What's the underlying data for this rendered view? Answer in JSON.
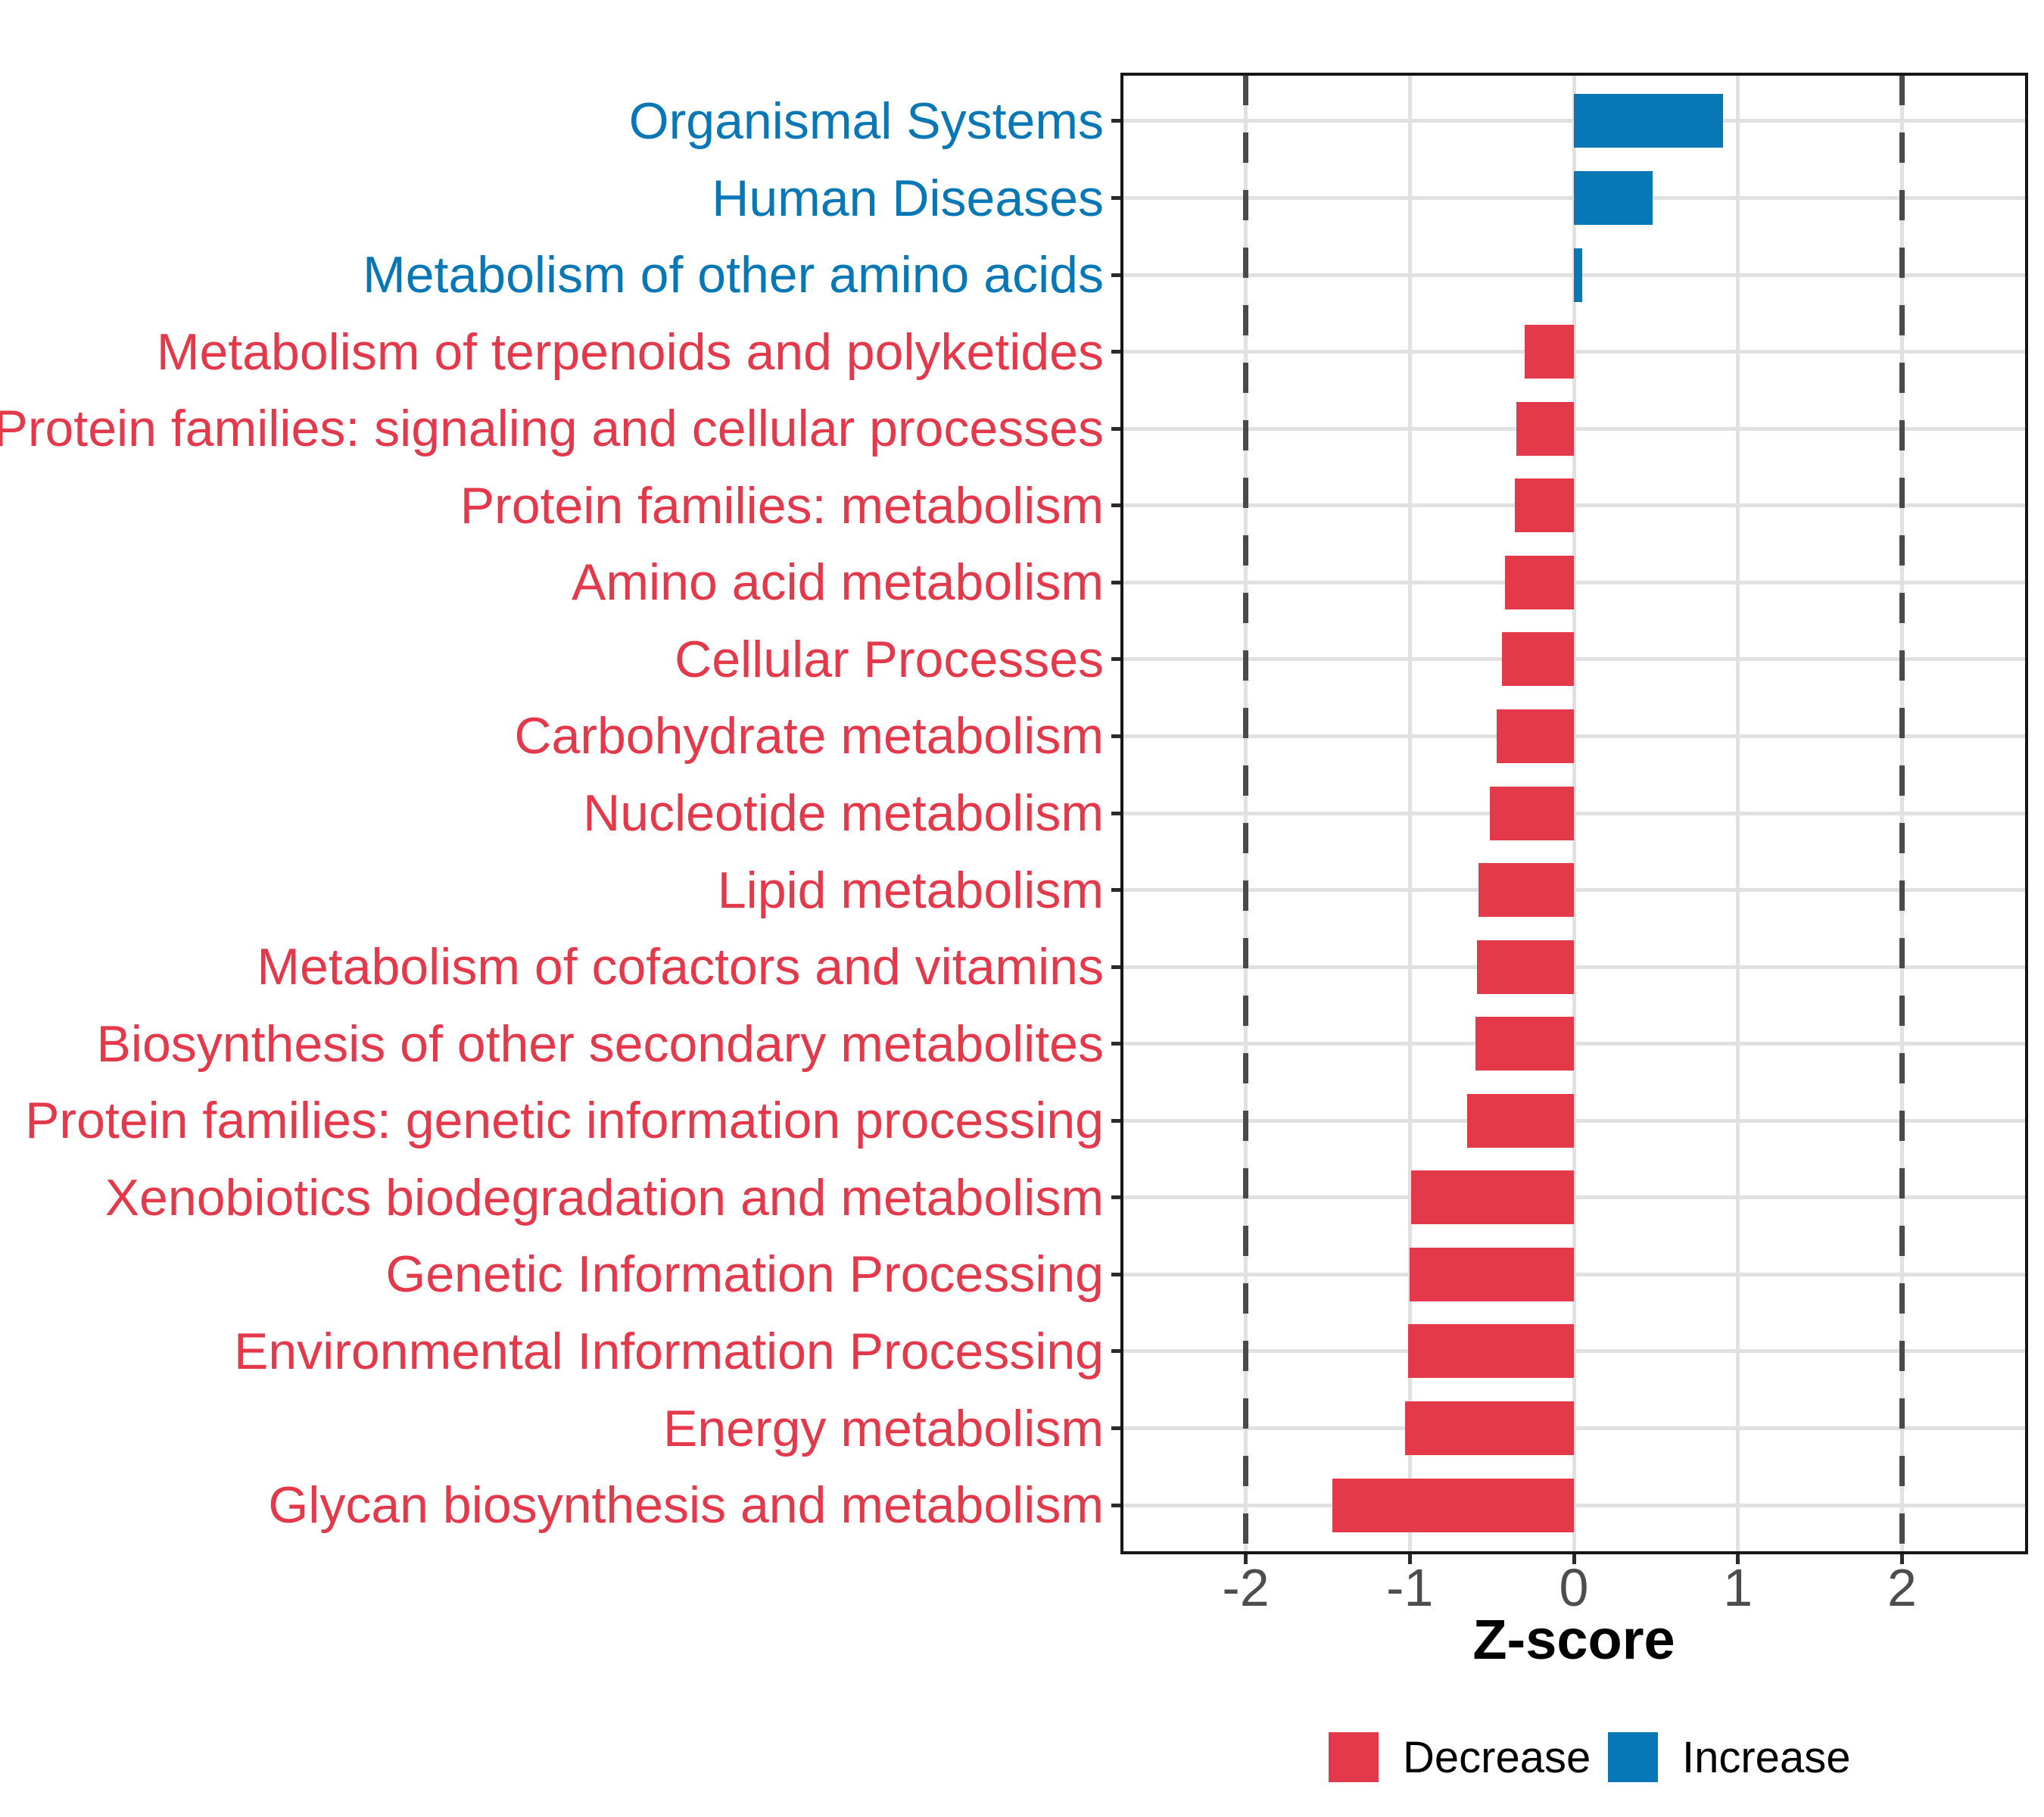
{
  "chart_data": {
    "type": "bar",
    "orientation": "horizontal",
    "title": "",
    "xlabel": "Z-score",
    "ylabel": "",
    "xlim": [
      -2.75,
      2.75
    ],
    "x_tick_values": [
      -2,
      -1,
      0,
      1,
      2
    ],
    "x_tick_labels": [
      "-2",
      "-1",
      "0",
      "1",
      "2"
    ],
    "reference_lines": [
      -2,
      2
    ],
    "grid": true,
    "legend_position": "bottom",
    "legend": {
      "entries": [
        {
          "label": "Decrease",
          "key": "decrease"
        },
        {
          "label": "Increase",
          "key": "increase"
        }
      ]
    },
    "series": [
      {
        "category": "Organismal Systems",
        "value": 0.91,
        "group": "Increase"
      },
      {
        "category": "Human Diseases",
        "value": 0.48,
        "group": "Increase"
      },
      {
        "category": "Metabolism of other amino acids",
        "value": 0.05,
        "group": "Increase"
      },
      {
        "category": "Metabolism of terpenoids and polyketides",
        "value": -0.3,
        "group": "Decrease"
      },
      {
        "category": "Protein families: signaling and cellular processes",
        "value": -0.35,
        "group": "Decrease"
      },
      {
        "category": "Protein families: metabolism",
        "value": -0.36,
        "group": "Decrease"
      },
      {
        "category": "Amino acid metabolism",
        "value": -0.42,
        "group": "Decrease"
      },
      {
        "category": "Cellular Processes",
        "value": -0.44,
        "group": "Decrease"
      },
      {
        "category": "Carbohydrate metabolism",
        "value": -0.47,
        "group": "Decrease"
      },
      {
        "category": "Nucleotide metabolism",
        "value": -0.51,
        "group": "Decrease"
      },
      {
        "category": "Lipid metabolism",
        "value": -0.58,
        "group": "Decrease"
      },
      {
        "category": "Metabolism of cofactors and vitamins",
        "value": -0.59,
        "group": "Decrease"
      },
      {
        "category": "Biosynthesis of other secondary metabolites",
        "value": -0.6,
        "group": "Decrease"
      },
      {
        "category": "Protein families: genetic information processing",
        "value": -0.65,
        "group": "Decrease"
      },
      {
        "category": "Xenobiotics biodegradation and metabolism",
        "value": -0.99,
        "group": "Decrease"
      },
      {
        "category": "Genetic Information Processing",
        "value": -1.0,
        "group": "Decrease"
      },
      {
        "category": "Environmental Information Processing",
        "value": -1.01,
        "group": "Decrease"
      },
      {
        "category": "Energy metabolism",
        "value": -1.03,
        "group": "Decrease"
      },
      {
        "category": "Glycan biosynthesis and metabolism",
        "value": -1.47,
        "group": "Decrease"
      }
    ]
  },
  "colors": {
    "decrease": "#E4394B",
    "increase": "#0777B6",
    "grid": "#E1E1E1",
    "reference_line": "#4A4A4A",
    "axis_text": "#4D4D4D",
    "axis_title": "#000000",
    "panel_border": "#161616",
    "background": "#FFFFFF"
  }
}
